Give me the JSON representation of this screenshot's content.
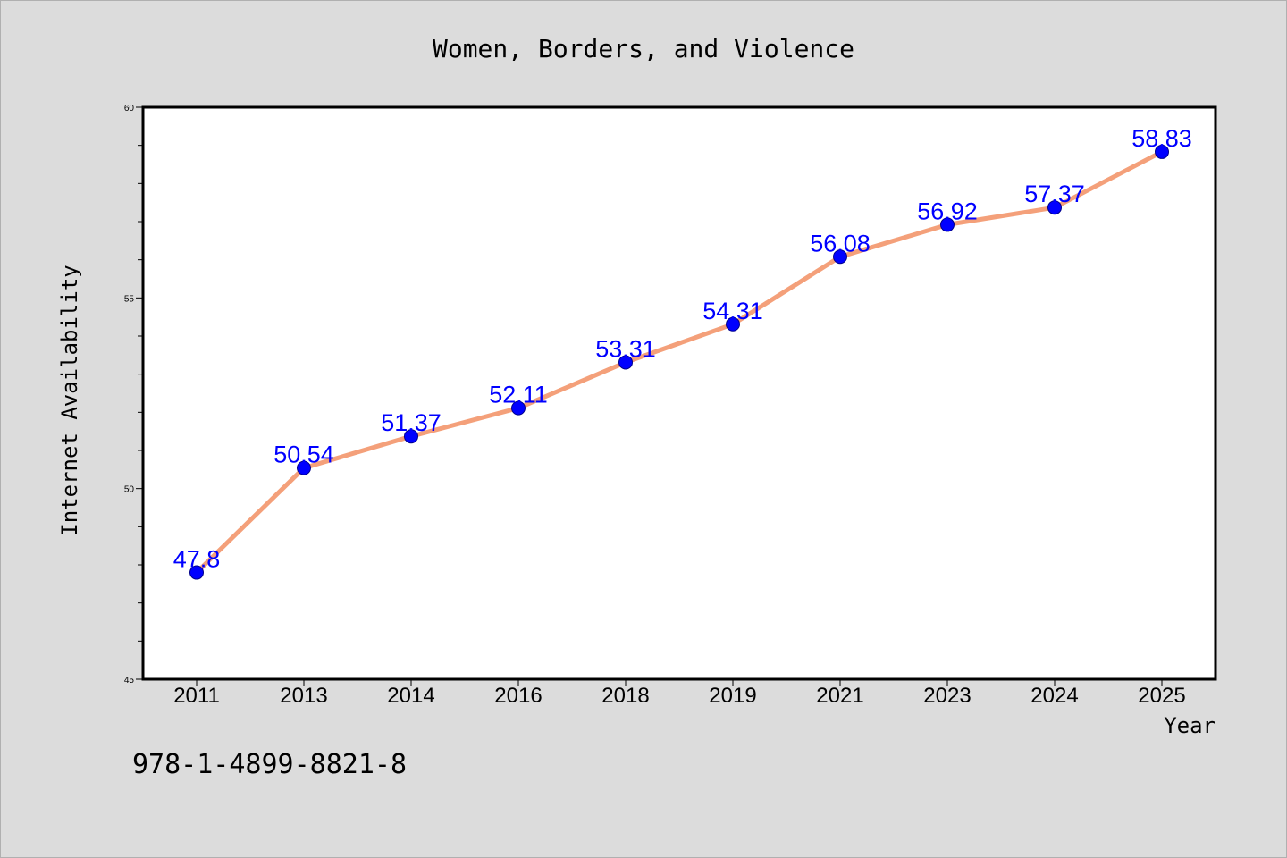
{
  "chart_data": {
    "type": "line",
    "title": "Women, Borders, and Violence",
    "xlabel": "Year",
    "ylabel": "Internet Availability",
    "categories": [
      "2011",
      "2013",
      "2014",
      "2016",
      "2018",
      "2019",
      "2021",
      "2023",
      "2024",
      "2025"
    ],
    "series": [
      {
        "values": [
          47.8,
          50.54,
          51.37,
          52.11,
          53.31,
          54.31,
          56.08,
          56.92,
          57.37,
          58.83
        ],
        "labels": [
          "47.8",
          "50.54",
          "51.37",
          "52.11",
          "53.31",
          "54.31",
          "56.08",
          "56.92",
          "57.37",
          "58.83"
        ]
      }
    ],
    "ylim": [
      45,
      60
    ],
    "yticks": [
      "45",
      "50",
      "55",
      "60"
    ],
    "grid": false,
    "colors": {
      "line": "#f4a07a",
      "marker": "#0000ff",
      "label": "#0000ff"
    }
  },
  "annotation": {
    "isbn": "978-1-4899-8821-8"
  }
}
